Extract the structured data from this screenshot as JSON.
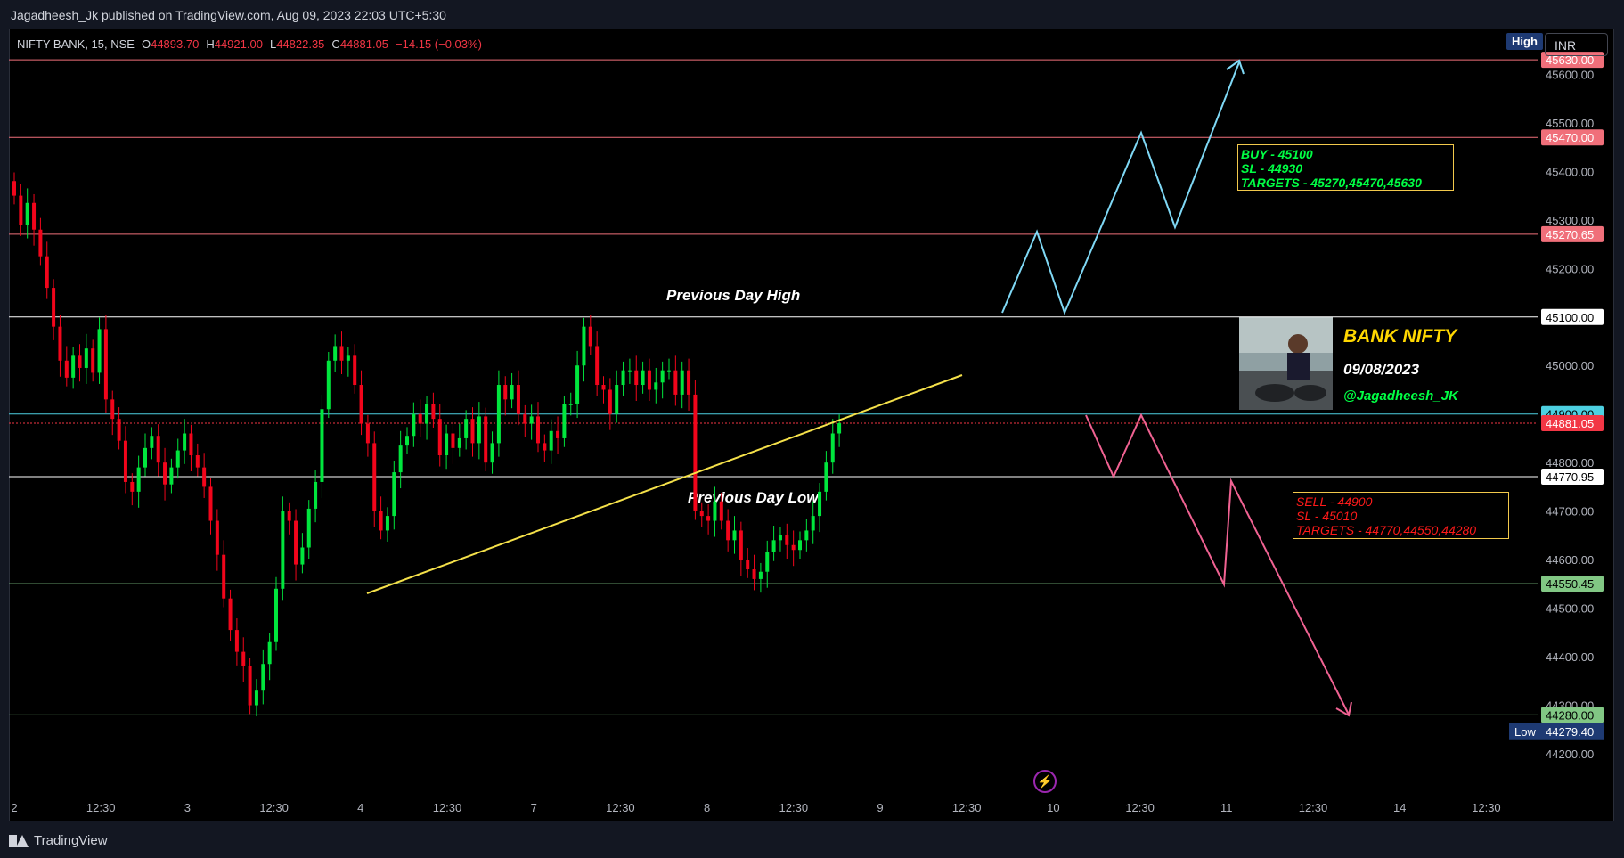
{
  "publisher": {
    "text": "Jagadheesh_Jk published on TradingView.com, Aug 09, 2023 22:03 UTC+5:30"
  },
  "legend": {
    "symbol": "NIFTY BANK, 15, NSE",
    "o_label": "O",
    "o_value": "44893.70",
    "h_label": "H",
    "h_value": "44921.00",
    "l_label": "L",
    "l_value": "44822.35",
    "c_label": "C",
    "c_value": "44881.05",
    "change": "−14.15 (−0.03%)"
  },
  "toolbar": {
    "high_badge": "High",
    "currency": "INR"
  },
  "annotations": {
    "prev_day_high": "Previous Day High",
    "prev_day_low": "Previous Day Low",
    "buy": [
      "BUY - 45100",
      "SL - 44930",
      "TARGETS - 45270,45470,45630"
    ],
    "sell": [
      "SELL - 44900",
      "SL - 45010",
      "TARGETS - 44770,44550,44280"
    ],
    "brand_title": "BANK NIFTY",
    "brand_date": "09/08/2023",
    "brand_handle": "@Jagadheesh_JK"
  },
  "footer": {
    "brand": "TradingView"
  },
  "colors": {
    "up": "#00e63d",
    "down": "#f2051b",
    "background": "#000000",
    "buy_path": "#7fd8f5",
    "sell_path": "#f06292",
    "trendline": "#f5e14a"
  },
  "chart_data": {
    "type": "candlestick",
    "symbol": "NIFTY BANK",
    "interval": "15",
    "ylim": [
      44100,
      45680
    ],
    "yticks": [
      45600,
      45500,
      45400,
      45300,
      45200,
      45000,
      44800,
      44700,
      44600,
      44500,
      44400,
      44300,
      44200
    ],
    "xlabels": [
      "2",
      "12:30",
      "3",
      "12:30",
      "4",
      "12:30",
      "7",
      "12:30",
      "8",
      "12:30",
      "9",
      "12:30",
      "10",
      "12:30",
      "11",
      "12:30",
      "14",
      "12:30"
    ],
    "levels": [
      {
        "value": 45630,
        "label": "45630.00",
        "color": "#f06f7a"
      },
      {
        "value": 45470,
        "label": "45470.00",
        "color": "#f06f7a"
      },
      {
        "value": 45270.65,
        "label": "45270.65",
        "color": "#f06f7a"
      },
      {
        "value": 45100,
        "label": "45100.00",
        "color": "#ffffff"
      },
      {
        "value": 44900,
        "label": "44900.00",
        "color": "#4dd0e1"
      },
      {
        "value": 44881.05,
        "label": "44881.05",
        "color": "#f23645"
      },
      {
        "value": 44770.95,
        "label": "44770.95",
        "color": "#ffffff"
      },
      {
        "value": 44550.45,
        "label": "44550.45",
        "color": "#81c784"
      },
      {
        "value": 44280,
        "label": "44280.00",
        "color": "#81c784"
      }
    ],
    "low_marker": {
      "label": "Low",
      "value": "44279.40"
    },
    "closes": [
      45350,
      45290,
      45335,
      45280,
      45225,
      45160,
      45080,
      45010,
      44975,
      45020,
      44995,
      45035,
      44985,
      45075,
      44930,
      44890,
      44845,
      44760,
      44740,
      44790,
      44830,
      44855,
      44800,
      44755,
      44790,
      44825,
      44860,
      44815,
      44790,
      44750,
      44680,
      44610,
      44520,
      44455,
      44410,
      44380,
      44300,
      44330,
      44385,
      44430,
      44540,
      44700,
      44680,
      44590,
      44625,
      44705,
      44760,
      44910,
      45010,
      45040,
      45010,
      45020,
      44960,
      44880,
      44840,
      44700,
      44660,
      44690,
      44780,
      44835,
      44855,
      44900,
      44880,
      44920,
      44890,
      44815,
      44860,
      44830,
      44850,
      44890,
      44840,
      44895,
      44800,
      44840,
      44960,
      44930,
      44960,
      44900,
      44880,
      44895,
      44840,
      44825,
      44865,
      44850,
      44920,
      44920,
      45000,
      45080,
      45040,
      44960,
      44950,
      44900,
      44960,
      44990,
      44990,
      44960,
      44990,
      44950,
      44965,
      44990,
      44990,
      44940,
      44990,
      44940,
      44700,
      44690,
      44680,
      44720,
      44680,
      44640,
      44660,
      44600,
      44580,
      44560,
      44575,
      44615,
      44640,
      44650,
      44630,
      44620,
      44640,
      44660,
      44690,
      44740,
      44800,
      44860,
      44881.05
    ]
  }
}
